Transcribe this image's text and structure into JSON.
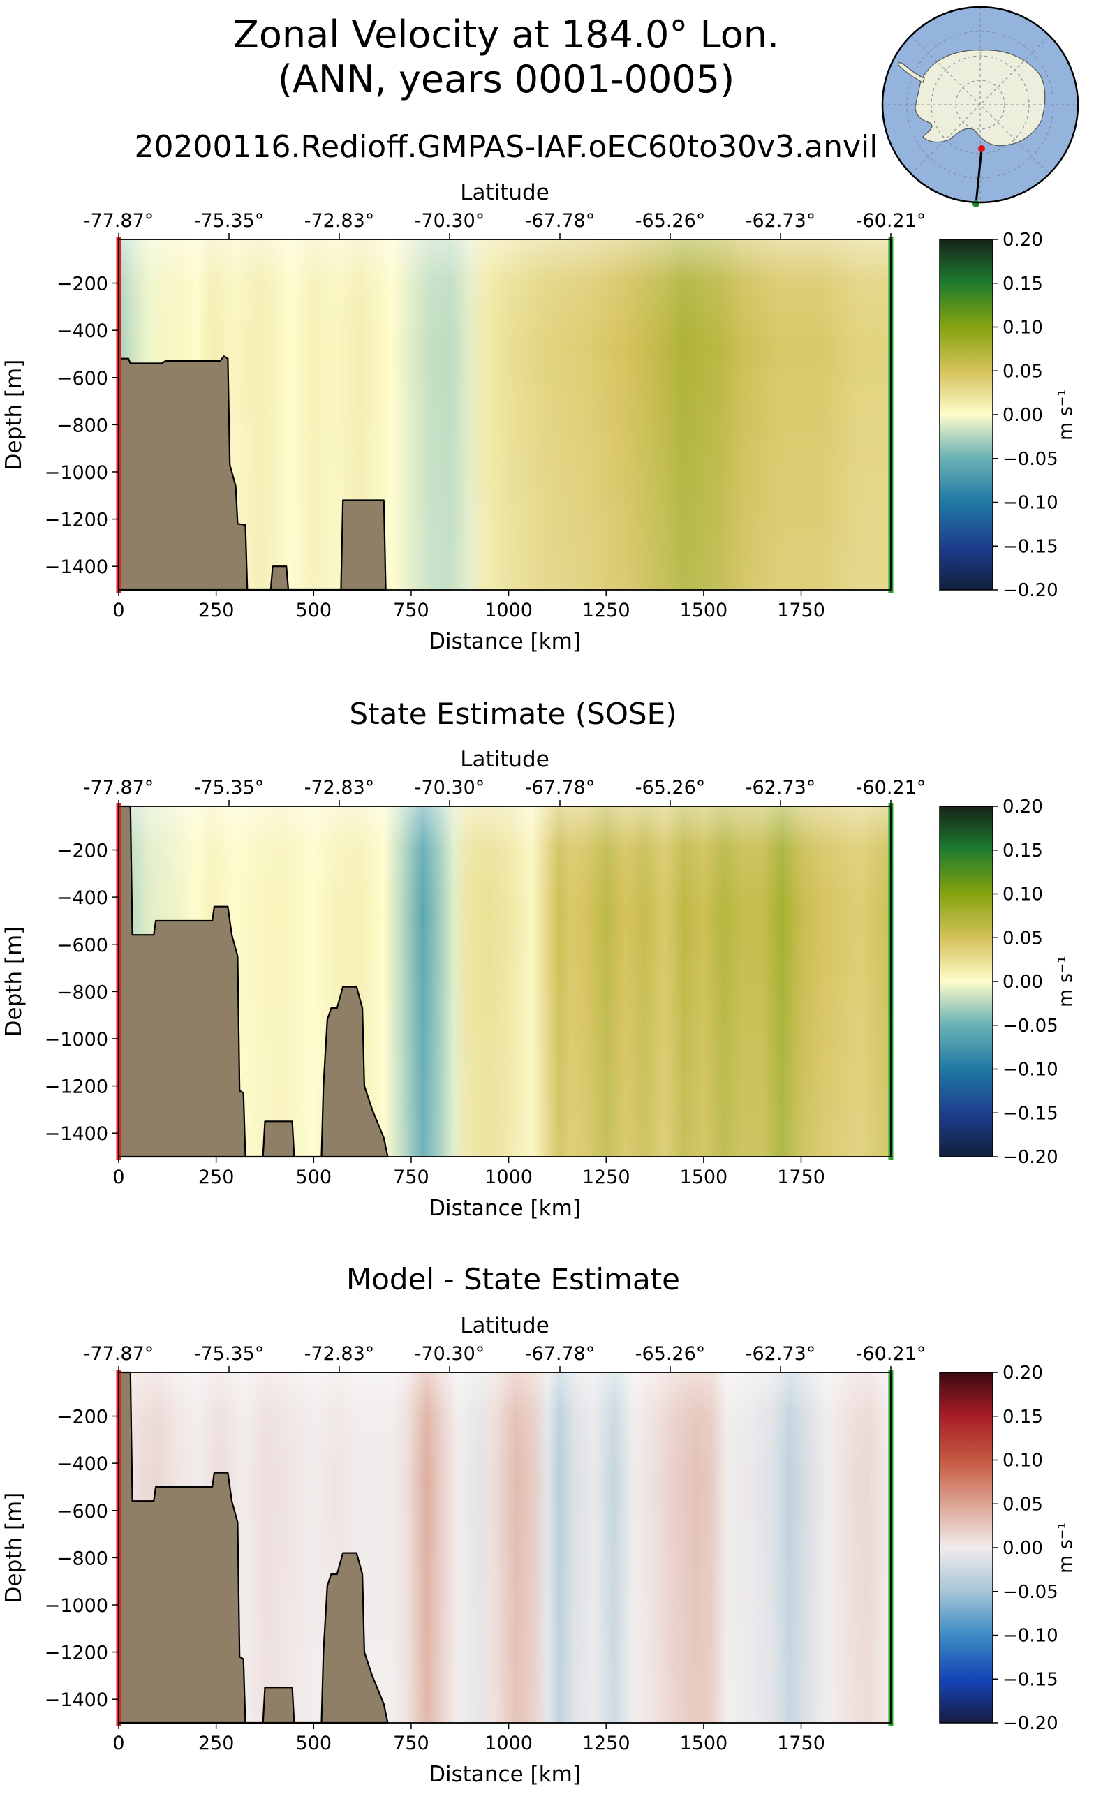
{
  "figure": {
    "title_line1": "Zonal Velocity at 184.0° Lon.",
    "title_line2": "(ANN, years 0001-0005)",
    "subtitle": "20200116.Redioff.GMPAS-IAF.oEC60to30v3.anvil"
  },
  "colors": {
    "bathymetry_fill": "#8f7f66",
    "section_start_marker": "#d62728",
    "section_end_marker": "#2ca02c",
    "inset_ocean": "#94b4de",
    "inset_land": "#eeeedc"
  },
  "chart_data": [
    {
      "type": "heatmap",
      "title": "",
      "xlabel": "Distance [km]",
      "ylabel": "Depth [m]",
      "top_axis_label": "Latitude",
      "top_ticks": [
        "-77.87°",
        "-75.35°",
        "-72.83°",
        "-70.30°",
        "-67.78°",
        "-65.26°",
        "-62.73°",
        "-60.21°"
      ],
      "xticks": [
        0,
        250,
        500,
        750,
        1000,
        1250,
        1500,
        1750
      ],
      "yticks": [
        -200,
        -400,
        -600,
        -800,
        -1000,
        -1200,
        -1400
      ],
      "xlim": [
        0,
        1980
      ],
      "ylim": [
        -1500,
        -15
      ],
      "colorbar": {
        "label": "m s⁻¹",
        "cmap": "delta",
        "ticks": [
          "0.20",
          "0.15",
          "0.10",
          "0.05",
          "0.00",
          "−0.05",
          "−0.10",
          "−0.15",
          "−0.20"
        ],
        "vmin": -0.2,
        "vmax": 0.2
      },
      "velocity_profile": {
        "distance_km": [
          0,
          40,
          80,
          150,
          200,
          240,
          300,
          360,
          400,
          440,
          500,
          560,
          620,
          700,
          750,
          800,
          850,
          900,
          940,
          1000,
          1100,
          1200,
          1300,
          1400,
          1450,
          1500,
          1550,
          1600,
          1700,
          1800,
          1900,
          1980
        ],
        "value": [
          -0.03,
          -0.015,
          -0.005,
          0.005,
          0.0,
          0.012,
          0.005,
          0.012,
          0.008,
          0.0,
          0.01,
          0.005,
          0.012,
          0.0,
          -0.01,
          -0.02,
          -0.022,
          -0.01,
          0.015,
          0.025,
          0.035,
          0.04,
          0.05,
          0.065,
          0.075,
          0.07,
          0.065,
          0.055,
          0.045,
          0.045,
          0.035,
          0.035
        ]
      },
      "bathymetry": [
        [
          0,
          -520
        ],
        [
          25,
          -520
        ],
        [
          30,
          -540
        ],
        [
          110,
          -540
        ],
        [
          120,
          -530
        ],
        [
          260,
          -530
        ],
        [
          270,
          -510
        ],
        [
          280,
          -520
        ],
        [
          285,
          -970
        ],
        [
          300,
          -1060
        ],
        [
          305,
          -1220
        ],
        [
          325,
          -1225
        ],
        [
          330,
          -1500
        ],
        [
          390,
          -1500
        ],
        [
          395,
          -1400
        ],
        [
          430,
          -1400
        ],
        [
          435,
          -1500
        ],
        [
          570,
          -1500
        ],
        [
          575,
          -1120
        ],
        [
          680,
          -1120
        ],
        [
          685,
          -1500
        ],
        [
          0,
          -1500
        ]
      ]
    },
    {
      "type": "heatmap",
      "title": "State Estimate (SOSE)",
      "xlabel": "Distance [km]",
      "ylabel": "Depth [m]",
      "top_axis_label": "Latitude",
      "top_ticks": [
        "-77.87°",
        "-75.35°",
        "-72.83°",
        "-70.30°",
        "-67.78°",
        "-65.26°",
        "-62.73°",
        "-60.21°"
      ],
      "xticks": [
        0,
        250,
        500,
        750,
        1000,
        1250,
        1500,
        1750
      ],
      "yticks": [
        -200,
        -400,
        -600,
        -800,
        -1000,
        -1200,
        -1400
      ],
      "xlim": [
        0,
        1980
      ],
      "ylim": [
        -1500,
        -15
      ],
      "colorbar": {
        "label": "m s⁻¹",
        "cmap": "delta",
        "ticks": [
          "0.20",
          "0.15",
          "0.10",
          "0.05",
          "0.00",
          "−0.05",
          "−0.10",
          "−0.15",
          "−0.20"
        ],
        "vmin": -0.2,
        "vmax": 0.2
      },
      "velocity_profile": {
        "distance_km": [
          0,
          40,
          80,
          150,
          200,
          240,
          300,
          360,
          420,
          500,
          560,
          620,
          680,
          720,
          780,
          820,
          860,
          900,
          950,
          1000,
          1060,
          1110,
          1130,
          1160,
          1200,
          1250,
          1300,
          1350,
          1400,
          1450,
          1500,
          1550,
          1600,
          1650,
          1700,
          1750,
          1800,
          1850,
          1900,
          1980
        ],
        "value": [
          -0.03,
          -0.02,
          -0.01,
          -0.005,
          0.0,
          0.008,
          0.0,
          0.005,
          0.008,
          0.0,
          0.008,
          0.01,
          0.0,
          -0.02,
          -0.06,
          -0.035,
          -0.01,
          0.02,
          0.025,
          0.018,
          0.005,
          0.04,
          0.055,
          0.045,
          0.05,
          0.065,
          0.05,
          0.06,
          0.045,
          0.065,
          0.055,
          0.07,
          0.06,
          0.06,
          0.08,
          0.06,
          0.05,
          0.045,
          0.04,
          0.055
        ]
      },
      "bathymetry": [
        [
          0,
          -15
        ],
        [
          30,
          -15
        ],
        [
          35,
          -560
        ],
        [
          90,
          -560
        ],
        [
          95,
          -500
        ],
        [
          240,
          -500
        ],
        [
          245,
          -440
        ],
        [
          280,
          -440
        ],
        [
          290,
          -560
        ],
        [
          305,
          -650
        ],
        [
          310,
          -1220
        ],
        [
          320,
          -1230
        ],
        [
          325,
          -1500
        ],
        [
          370,
          -1500
        ],
        [
          375,
          -1350
        ],
        [
          445,
          -1350
        ],
        [
          450,
          -1500
        ],
        [
          520,
          -1500
        ],
        [
          525,
          -1200
        ],
        [
          535,
          -920
        ],
        [
          545,
          -870
        ],
        [
          560,
          -870
        ],
        [
          575,
          -780
        ],
        [
          610,
          -780
        ],
        [
          625,
          -870
        ],
        [
          630,
          -1200
        ],
        [
          650,
          -1300
        ],
        [
          680,
          -1420
        ],
        [
          690,
          -1500
        ],
        [
          0,
          -1500
        ]
      ]
    },
    {
      "type": "heatmap",
      "title": "Model - State Estimate",
      "xlabel": "Distance [km]",
      "ylabel": "Depth [m]",
      "top_axis_label": "Latitude",
      "top_ticks": [
        "-77.87°",
        "-75.35°",
        "-72.83°",
        "-70.30°",
        "-67.78°",
        "-65.26°",
        "-62.73°",
        "-60.21°"
      ],
      "xticks": [
        0,
        250,
        500,
        750,
        1000,
        1250,
        1500,
        1750
      ],
      "yticks": [
        -200,
        -400,
        -600,
        -800,
        -1000,
        -1200,
        -1400
      ],
      "xlim": [
        0,
        1980
      ],
      "ylim": [
        -1500,
        -15
      ],
      "colorbar": {
        "label": "m s⁻¹",
        "cmap": "balance",
        "ticks": [
          "0.20",
          "0.15",
          "0.10",
          "0.05",
          "0.00",
          "−0.05",
          "−0.10",
          "−0.15",
          "−0.20"
        ],
        "vmin": -0.2,
        "vmax": 0.2
      },
      "velocity_profile": {
        "distance_km": [
          0,
          50,
          100,
          150,
          200,
          260,
          320,
          380,
          440,
          500,
          560,
          620,
          700,
          740,
          790,
          830,
          870,
          920,
          960,
          1020,
          1060,
          1100,
          1130,
          1170,
          1220,
          1270,
          1320,
          1380,
          1420,
          1480,
          1520,
          1560,
          1620,
          1680,
          1720,
          1760,
          1820,
          1880,
          1920,
          1980
        ],
        "value": [
          0.0,
          0.01,
          0.015,
          0.005,
          0.0,
          0.01,
          0.0,
          0.01,
          0.005,
          0.0,
          0.005,
          0.0,
          0.0,
          0.01,
          0.045,
          0.02,
          0.0,
          -0.01,
          0.01,
          0.035,
          0.025,
          -0.01,
          -0.04,
          -0.015,
          -0.005,
          -0.03,
          0.0,
          0.01,
          0.02,
          0.03,
          0.025,
          0.0,
          -0.005,
          -0.015,
          -0.035,
          -0.02,
          0.0,
          0.01,
          0.015,
          0.0
        ]
      },
      "bathymetry": [
        [
          0,
          -15
        ],
        [
          30,
          -15
        ],
        [
          35,
          -560
        ],
        [
          90,
          -560
        ],
        [
          95,
          -500
        ],
        [
          240,
          -500
        ],
        [
          245,
          -440
        ],
        [
          280,
          -440
        ],
        [
          290,
          -560
        ],
        [
          305,
          -650
        ],
        [
          310,
          -1220
        ],
        [
          320,
          -1230
        ],
        [
          325,
          -1500
        ],
        [
          370,
          -1500
        ],
        [
          375,
          -1350
        ],
        [
          445,
          -1350
        ],
        [
          450,
          -1500
        ],
        [
          520,
          -1500
        ],
        [
          525,
          -1200
        ],
        [
          535,
          -920
        ],
        [
          545,
          -870
        ],
        [
          560,
          -870
        ],
        [
          575,
          -780
        ],
        [
          610,
          -780
        ],
        [
          625,
          -870
        ],
        [
          630,
          -1200
        ],
        [
          650,
          -1300
        ],
        [
          680,
          -1420
        ],
        [
          690,
          -1500
        ],
        [
          0,
          -1500
        ]
      ]
    }
  ]
}
